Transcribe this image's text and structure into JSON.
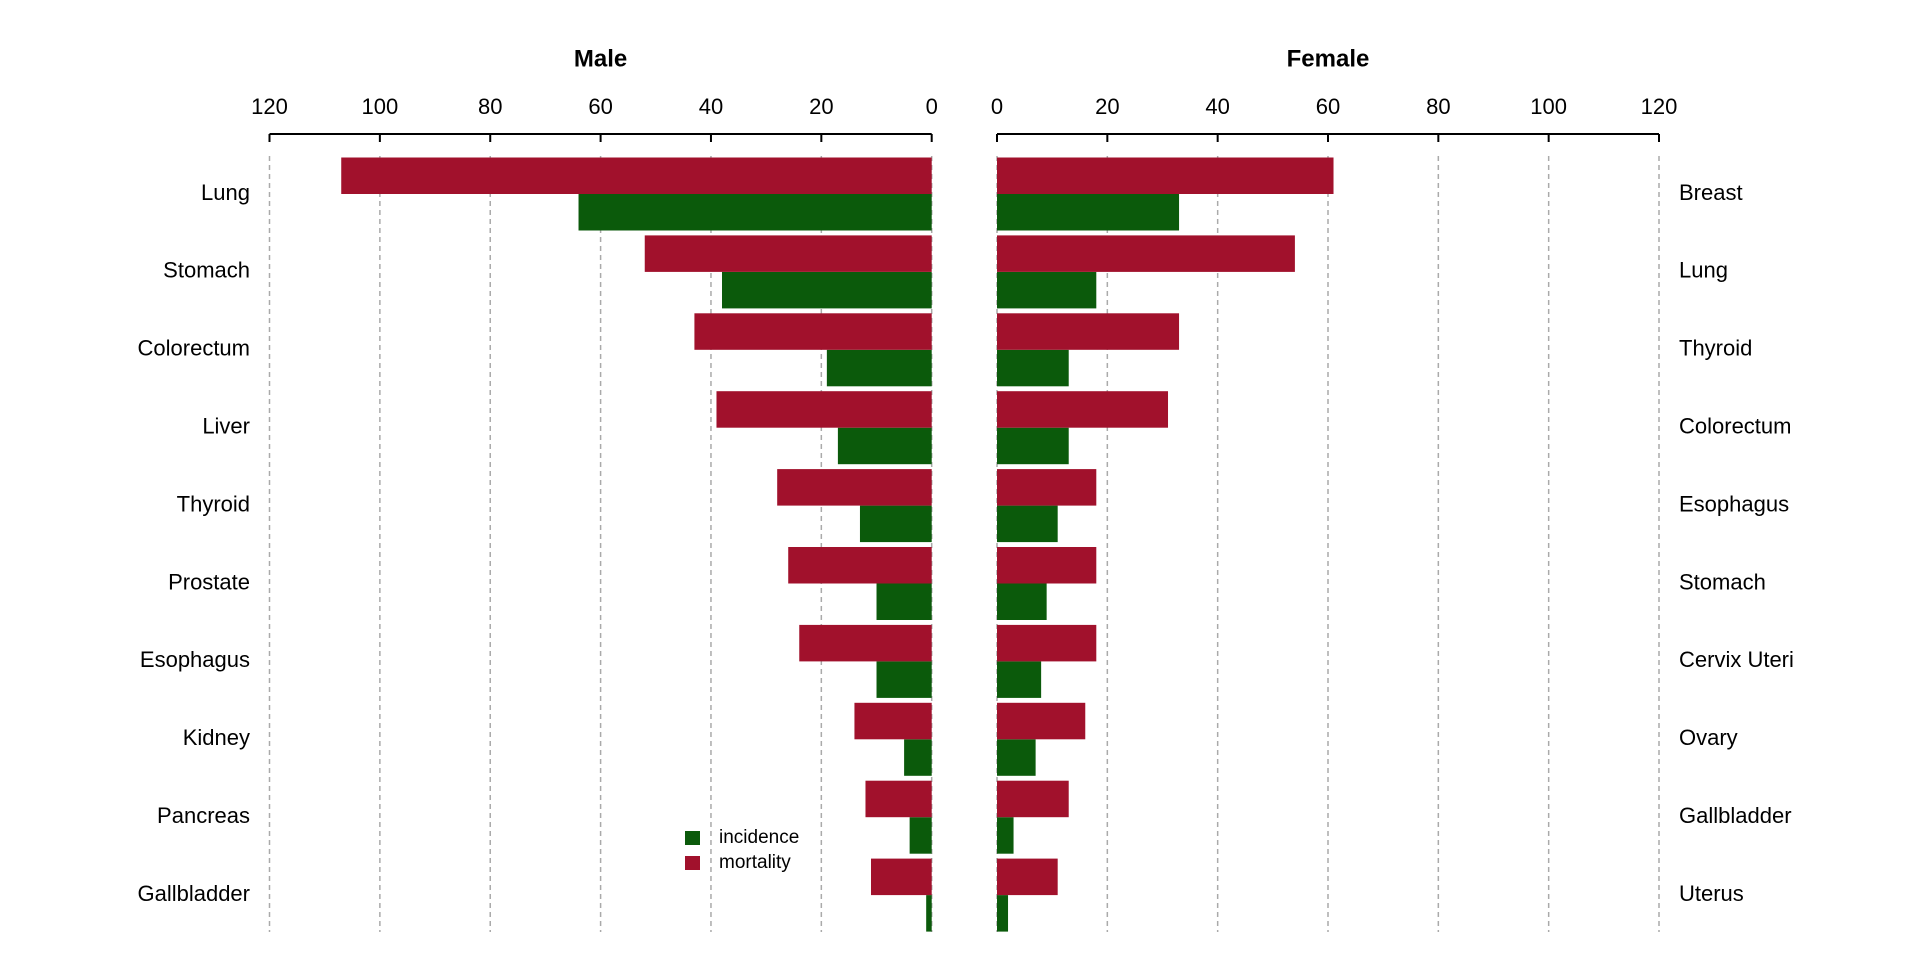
{
  "chart_data": [
    {
      "type": "bar",
      "orientation": "horizontal",
      "title": "Male",
      "x_reversed": true,
      "label_side": "left",
      "categories": [
        "Lung",
        "Stomach",
        "Colorectum",
        "Liver",
        "Thyroid",
        "Prostate",
        "Esophagus",
        "Kidney",
        "Pancreas",
        "Gallbladder"
      ],
      "series": [
        {
          "name": "incidence",
          "color": "#0b5a0b",
          "values": [
            64,
            38,
            19,
            17,
            13,
            10,
            10,
            5,
            4,
            1
          ]
        },
        {
          "name": "mortality",
          "color": "#a1112c",
          "values": [
            107,
            52,
            43,
            39,
            28,
            26,
            24,
            14,
            12,
            11
          ]
        }
      ],
      "xlim": [
        0,
        120
      ],
      "xticks": [
        0,
        20,
        40,
        60,
        80,
        100,
        120
      ],
      "grid": true,
      "legend": "lower right"
    },
    {
      "type": "bar",
      "orientation": "horizontal",
      "title": "Female",
      "x_reversed": false,
      "label_side": "right",
      "categories": [
        "Breast",
        "Lung",
        "Thyroid",
        "Colorectum",
        "Esophagus",
        "Stomach",
        "Cervix Uteri",
        "Ovary",
        "Gallbladder",
        "Uterus"
      ],
      "series": [
        {
          "color": "#0b5a0b",
          "values": [
            33,
            18,
            13,
            13,
            11,
            9,
            8,
            7,
            3,
            2
          ]
        },
        {
          "color": "#a1112c",
          "values": [
            61,
            54,
            33,
            31,
            18,
            18,
            18,
            16,
            13,
            11
          ]
        }
      ],
      "xlim": [
        0,
        120
      ],
      "xticks": [
        0,
        20,
        40,
        60,
        80,
        100,
        120
      ],
      "grid": true
    }
  ]
}
